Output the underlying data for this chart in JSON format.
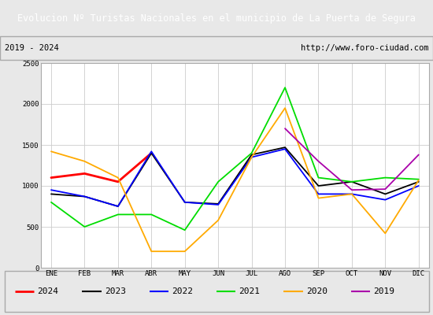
{
  "title": "Evolucion Nº Turistas Nacionales en el municipio de La Puerta de Segura",
  "subtitle_left": "2019 - 2024",
  "subtitle_right": "http://www.foro-ciudad.com",
  "title_bg_color": "#5b9bd5",
  "title_text_color": "#ffffff",
  "months": [
    "ENE",
    "FEB",
    "MAR",
    "ABR",
    "MAY",
    "JUN",
    "JUL",
    "AGO",
    "SEP",
    "OCT",
    "NOV",
    "DIC"
  ],
  "ylim": [
    0,
    2500
  ],
  "yticks": [
    0,
    500,
    1000,
    1500,
    2000,
    2500
  ],
  "series": {
    "2024": {
      "color": "#ff0000",
      "values": [
        1100,
        1150,
        1050,
        1400,
        null,
        null,
        null,
        null,
        null,
        null,
        null,
        null
      ]
    },
    "2023": {
      "color": "#000000",
      "values": [
        900,
        870,
        750,
        1400,
        800,
        780,
        1380,
        1470,
        1000,
        1050,
        900,
        1050
      ]
    },
    "2022": {
      "color": "#0000ff",
      "values": [
        950,
        870,
        750,
        1420,
        800,
        770,
        1350,
        1450,
        900,
        900,
        830,
        1000
      ]
    },
    "2021": {
      "color": "#00dd00",
      "values": [
        800,
        500,
        650,
        650,
        460,
        1050,
        1400,
        2200,
        1100,
        1050,
        1100,
        1080
      ]
    },
    "2020": {
      "color": "#ffaa00",
      "values": [
        1420,
        1300,
        1100,
        200,
        200,
        580,
        1350,
        1950,
        850,
        900,
        420,
        1070
      ]
    },
    "2019": {
      "color": "#aa00aa",
      "values": [
        null,
        null,
        null,
        null,
        null,
        null,
        null,
        1700,
        1300,
        950,
        960,
        1380
      ]
    }
  },
  "legend_order": [
    "2024",
    "2023",
    "2022",
    "2021",
    "2020",
    "2019"
  ],
  "outer_bg_color": "#e8e8e8",
  "plot_bg_color": "#ffffff",
  "grid_color": "#cccccc",
  "border_color": "#aaaaaa"
}
